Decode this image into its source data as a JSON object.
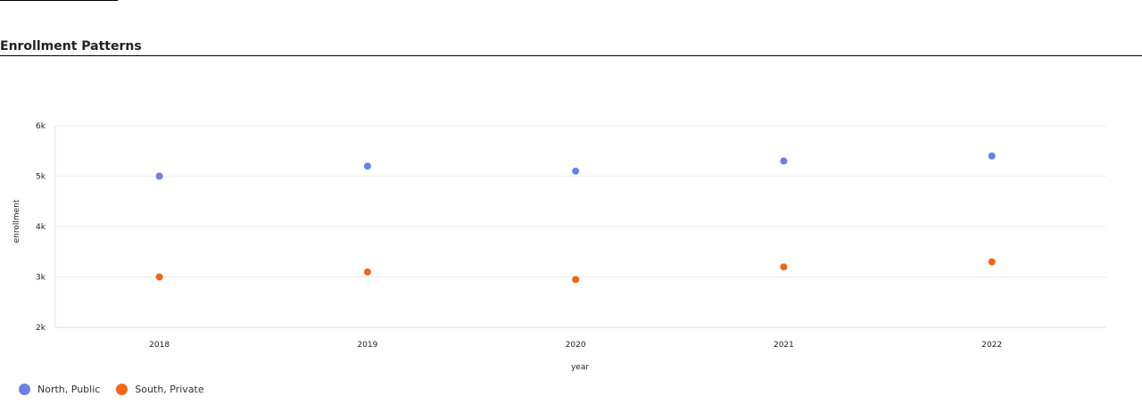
{
  "page": {
    "section_title": "Enrollment Patterns"
  },
  "chart_data": {
    "type": "scatter",
    "title": "",
    "xlabel": "year",
    "ylabel": "enrollment",
    "x": [
      2018,
      2019,
      2020,
      2021,
      2022
    ],
    "xlim": [
      2017.5,
      2022.55
    ],
    "ylim": [
      2000,
      6000
    ],
    "yticks": [
      2000,
      3000,
      4000,
      5000,
      6000
    ],
    "ytick_labels": [
      "2k",
      "3k",
      "4k",
      "5k",
      "6k"
    ],
    "xtick_labels": [
      "2018",
      "2019",
      "2020",
      "2021",
      "2022"
    ],
    "grid": true,
    "legend_position": "bottom-left",
    "series": [
      {
        "name": "North, Public",
        "color": "#6b80e8",
        "values": [
          5000,
          5200,
          5100,
          5300,
          5400
        ]
      },
      {
        "name": "South, Private",
        "color": "#f2651a",
        "values": [
          3000,
          3100,
          2950,
          3200,
          3300
        ]
      }
    ]
  }
}
